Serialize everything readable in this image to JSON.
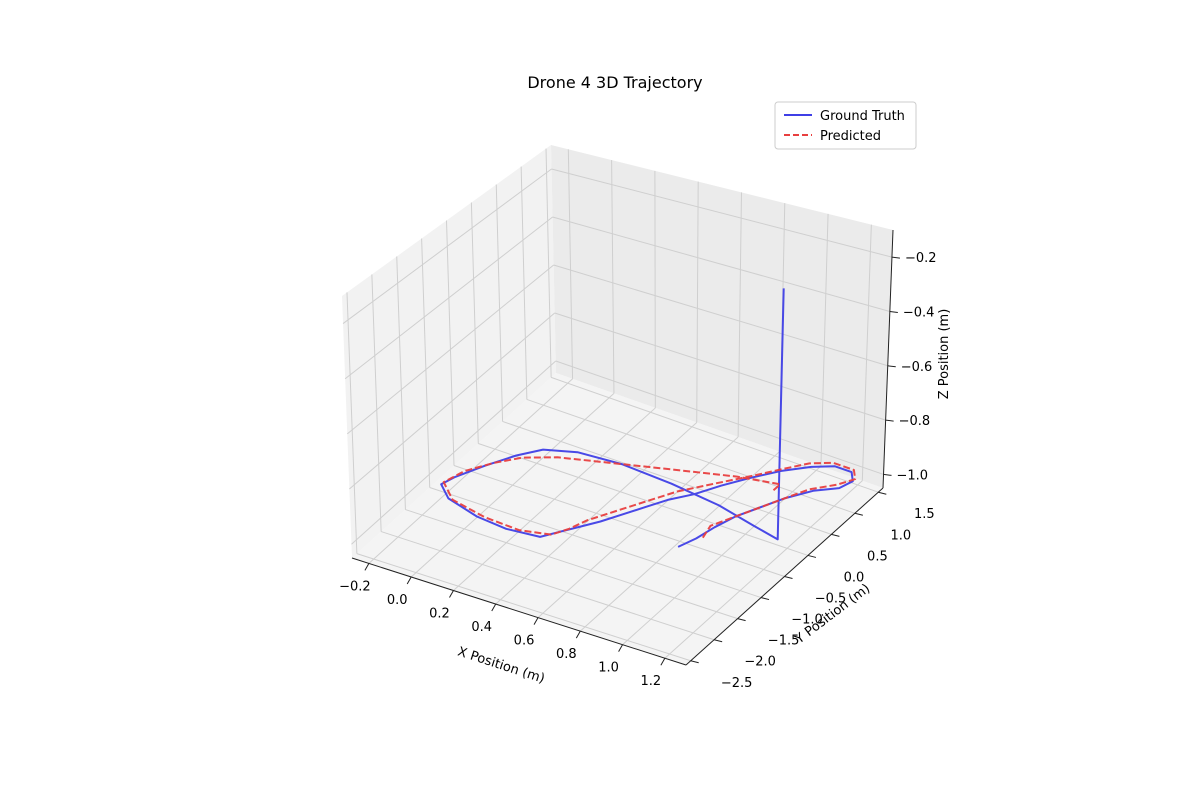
{
  "chart_data": {
    "type": "line3d",
    "title": "Drone 4 3D Trajectory",
    "xlabel": "X Position (m)",
    "ylabel": "Y Position (m)",
    "zlabel": "Z Position (m)",
    "xlim": [
      -0.28,
      1.3
    ],
    "ylim": [
      -2.6,
      1.6
    ],
    "zlim": [
      -1.05,
      -0.1
    ],
    "xticks": [
      -0.2,
      0.0,
      0.2,
      0.4,
      0.6,
      0.8,
      1.0,
      1.2
    ],
    "xtick_labels": [
      "−0.2",
      "0.0",
      "0.2",
      "0.4",
      "0.6",
      "0.8",
      "1.0",
      "1.2"
    ],
    "yticks": [
      -2.5,
      -2.0,
      -1.5,
      -1.0,
      -0.5,
      0.0,
      0.5,
      1.0,
      1.5
    ],
    "ytick_labels": [
      "−2.5",
      "−2.0",
      "−1.5",
      "−1.0",
      "−0.5",
      "0.0",
      "0.5",
      "1.0",
      "1.5"
    ],
    "zticks": [
      -1.0,
      -0.8,
      -0.6,
      -0.4,
      -0.2
    ],
    "ztick_labels": [
      "−1.0",
      "−0.8",
      "−0.6",
      "−0.4",
      "−0.2"
    ],
    "grid": true,
    "legend_position": "upper right",
    "series": [
      {
        "name": "Ground Truth",
        "color": "#3f3fe6",
        "style": "solid",
        "points": [
          [
            1.22,
            -0.3,
            -0.1
          ],
          [
            1.22,
            -0.3,
            -0.97
          ],
          [
            1.05,
            -0.05,
            -1.0
          ],
          [
            0.85,
            0.1,
            -1.0
          ],
          [
            0.6,
            0.2,
            -1.0
          ],
          [
            0.35,
            0.25,
            -1.0
          ],
          [
            0.15,
            0.2,
            -1.0
          ],
          [
            0.02,
            0.05,
            -1.0
          ],
          [
            -0.05,
            -0.2,
            -1.0
          ],
          [
            -0.12,
            -0.55,
            -1.0
          ],
          [
            -0.18,
            -0.9,
            -1.0
          ],
          [
            -0.2,
            -1.1,
            -1.0
          ],
          [
            -0.12,
            -1.3,
            -1.0
          ],
          [
            0.05,
            -1.45,
            -1.0
          ],
          [
            0.2,
            -1.5,
            -1.0
          ],
          [
            0.35,
            -1.45,
            -1.0
          ],
          [
            0.4,
            -1.25,
            -1.0
          ],
          [
            0.45,
            -1.05,
            -1.0
          ],
          [
            0.5,
            -0.85,
            -1.0
          ],
          [
            0.55,
            -0.6,
            -1.0
          ],
          [
            0.6,
            -0.35,
            -1.0
          ],
          [
            0.65,
            -0.1,
            -1.0
          ],
          [
            0.72,
            0.15,
            -1.0
          ],
          [
            0.78,
            0.45,
            -1.0
          ],
          [
            0.85,
            0.75,
            -1.0
          ],
          [
            0.93,
            1.05,
            -1.0
          ],
          [
            1.02,
            1.3,
            -1.0
          ],
          [
            1.1,
            1.45,
            -1.0
          ],
          [
            1.18,
            1.45,
            -1.0
          ],
          [
            1.22,
            1.3,
            -1.0
          ],
          [
            1.2,
            1.1,
            -1.0
          ],
          [
            1.12,
            0.9,
            -1.0
          ],
          [
            1.05,
            0.6,
            -1.0
          ],
          [
            1.0,
            0.3,
            -1.0
          ],
          [
            0.95,
            0.0,
            -1.0
          ],
          [
            0.92,
            -0.3,
            -1.0
          ],
          [
            0.9,
            -0.6,
            -1.0
          ],
          [
            0.87,
            -0.85,
            -1.0
          ]
        ]
      },
      {
        "name": "Predicted",
        "color": "#e83f3f",
        "style": "dashed",
        "points": [
          [
            0.92,
            -0.55,
            -1.0
          ],
          [
            0.9,
            -0.3,
            -1.0
          ],
          [
            0.95,
            0.0,
            -1.0
          ],
          [
            1.0,
            0.3,
            -1.0
          ],
          [
            1.05,
            0.6,
            -1.0
          ],
          [
            1.1,
            0.9,
            -1.0
          ],
          [
            1.18,
            1.15,
            -1.0
          ],
          [
            1.22,
            1.35,
            -1.0
          ],
          [
            1.18,
            1.5,
            -1.0
          ],
          [
            1.08,
            1.5,
            -1.0
          ],
          [
            1.0,
            1.35,
            -1.0
          ],
          [
            0.93,
            1.1,
            -1.0
          ],
          [
            0.85,
            0.8,
            -1.0
          ],
          [
            0.75,
            0.45,
            -1.0
          ],
          [
            0.65,
            0.1,
            -1.0
          ],
          [
            0.58,
            -0.25,
            -1.0
          ],
          [
            0.52,
            -0.55,
            -1.0
          ],
          [
            0.45,
            -0.9,
            -1.0
          ],
          [
            0.42,
            -1.15,
            -1.0
          ],
          [
            0.38,
            -1.35,
            -1.0
          ],
          [
            0.25,
            -1.45,
            -1.0
          ],
          [
            0.08,
            -1.42,
            -1.0
          ],
          [
            -0.1,
            -1.3,
            -1.0
          ],
          [
            -0.2,
            -1.05,
            -1.0
          ],
          [
            -0.17,
            -0.75,
            -1.0
          ],
          [
            -0.1,
            -0.45,
            -1.0
          ],
          [
            -0.02,
            -0.2,
            -1.0
          ],
          [
            0.1,
            0.0,
            -1.0
          ],
          [
            0.3,
            0.2,
            -1.0
          ],
          [
            0.55,
            0.45,
            -1.0
          ],
          [
            0.8,
            0.7,
            -1.0
          ],
          [
            0.98,
            0.82,
            -1.0
          ],
          [
            0.98,
            0.65,
            -1.0
          ]
        ]
      }
    ]
  }
}
